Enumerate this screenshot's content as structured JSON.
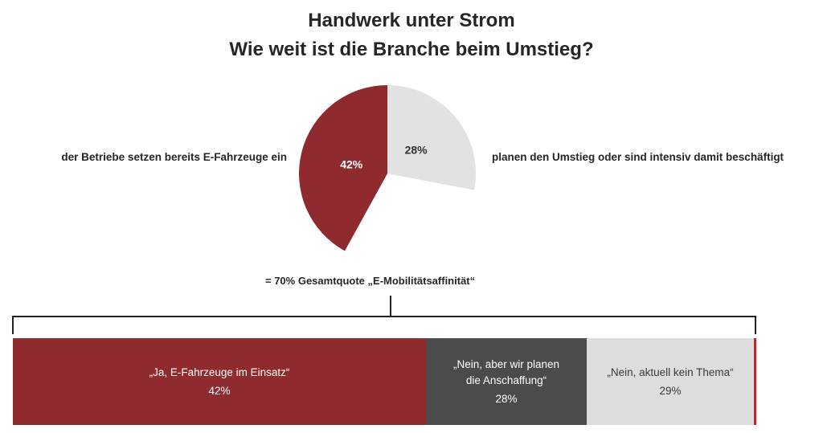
{
  "chart_data": [
    {
      "type": "pie",
      "title": "Handwerk unter Strom",
      "subtitle": "Wie weit ist die Branche beim Umstieg?",
      "slices": [
        {
          "label": "der Betriebe setzen bereits E-Fahrzeuge ein",
          "value": 42,
          "display": "42%",
          "color": "#8f2b2e"
        },
        {
          "label": "planen den Umstieg oder sind intensiv damit beschäftigt",
          "value": 28,
          "display": "28%",
          "color": "#e2e2e2"
        }
      ],
      "total_label": "= 70% Gesamtquote „E-Mobilitätsaffinität“"
    },
    {
      "type": "bar",
      "orientation": "horizontal-stacked",
      "segments": [
        {
          "label": "„Ja, E-Fahrzeuge im Einsatz“",
          "value": 42,
          "display": "42%",
          "color": "#8f2b2e"
        },
        {
          "label": "„Nein, aber wir planen die Anschaffung“",
          "line1": "„Nein, aber wir planen",
          "line2": "die Anschaffung“",
          "value": 28,
          "display": "28%",
          "color": "#4b4b4b"
        },
        {
          "label": "„Nein, aktuell kein Thema“",
          "value": 29,
          "display": "29%",
          "color": "#dddddd"
        },
        {
          "label": "",
          "value": 1,
          "display": "",
          "color": "#c0272d"
        }
      ]
    }
  ]
}
